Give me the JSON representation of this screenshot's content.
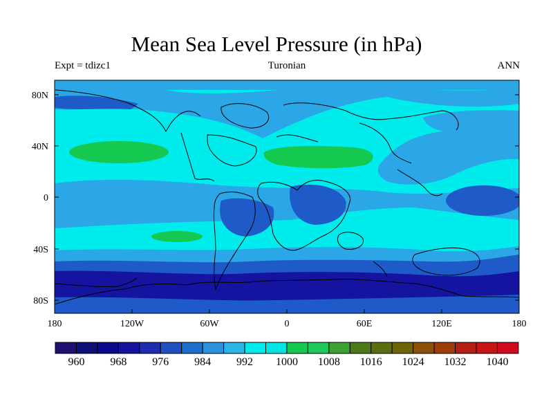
{
  "header": {
    "title": "Mean Sea Level Pressure (in hPa)",
    "left": "Expt = tdizc1",
    "center": "Turonian",
    "right": "ANN"
  },
  "map": {
    "lat_ticks": [
      "80N",
      "40N",
      "0",
      "40S",
      "80S"
    ],
    "lon_ticks": [
      "180",
      "120W",
      "60W",
      "0",
      "60E",
      "120E",
      "180"
    ],
    "level_colors": {
      "below_984": "#1414a0",
      "984_988": "#1e5ac8",
      "988_996": "#2ba6e6",
      "996_1004": "#00ebeb",
      "1004_1008": "#14c850"
    }
  },
  "colorbar": {
    "colors": [
      "#200f6e",
      "#0f0f78",
      "#0a0a8c",
      "#14149b",
      "#1e2daf",
      "#1e50c0",
      "#1e6ecd",
      "#2a91dc",
      "#2bb4e8",
      "#00ebeb",
      "#00e6e6",
      "#14c850",
      "#1ec85a",
      "#3ca032",
      "#4b7819",
      "#5a6e0f",
      "#6e640a",
      "#8c500a",
      "#a03c0a",
      "#b41e14",
      "#c81414",
      "#d20a1e"
    ],
    "labels": [
      "960",
      "968",
      "976",
      "984",
      "992",
      "1000",
      "1008",
      "1016",
      "1024",
      "1032",
      "1040"
    ]
  }
}
